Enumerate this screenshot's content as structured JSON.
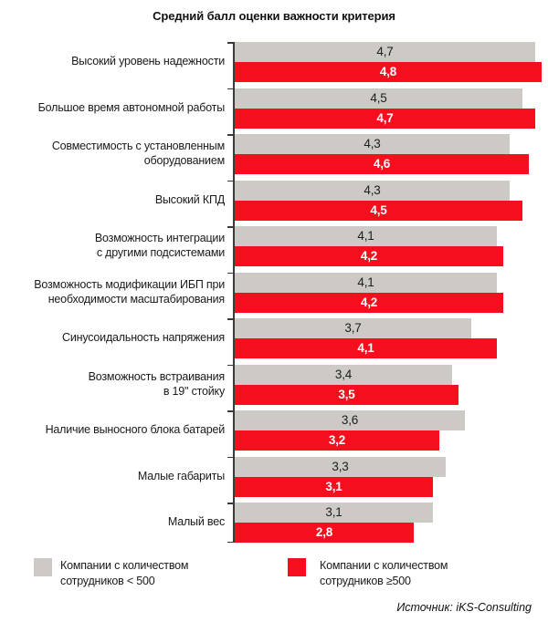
{
  "source": "Источник: iKS-Consulting",
  "legend": [
    {
      "label": "Компании с количеством\nсотрудников < 500",
      "color": "#cdc9c5"
    },
    {
      "label": "Компании с количеством\nсотрудников ≥500",
      "color": "#f50f1e"
    }
  ],
  "chart_data": {
    "type": "bar",
    "orientation": "horizontal",
    "title": "Средний балл оценки важности критерия",
    "xlabel": "",
    "ylabel": "",
    "xlim": [
      0,
      4.9
    ],
    "grid": false,
    "legend_position": "bottom",
    "value_label_decimal_separator": ",",
    "categories": [
      "Высокий уровень надежности",
      "Большое время автономной работы",
      "Совместимость с установленным\nоборудованием",
      "Высокий КПД",
      "Возможность интеграции\nс другими подсистемами",
      "Возможность модификации ИБП при\nнеобходимости масштабирования",
      "Синусоидальность напряжения",
      "Возможность встраивания\nв 19\" стойку",
      "Наличие выносного блока батарей",
      "Малые габариты",
      "Малый вес"
    ],
    "series": [
      {
        "name": "Компании с количеством сотрудников < 500",
        "color": "#cdc9c5",
        "values": [
          4.7,
          4.5,
          4.3,
          4.3,
          4.1,
          4.1,
          3.7,
          3.4,
          3.6,
          3.3,
          3.1
        ]
      },
      {
        "name": "Компании с количеством сотрудников ≥500",
        "color": "#f50f1e",
        "values": [
          4.8,
          4.7,
          4.6,
          4.5,
          4.2,
          4.2,
          4.1,
          3.5,
          3.2,
          3.1,
          2.8
        ]
      }
    ]
  }
}
